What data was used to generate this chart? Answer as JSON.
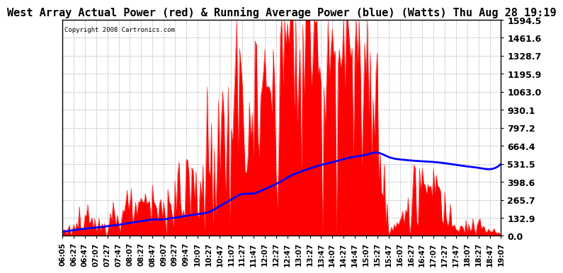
{
  "title": "West Array Actual Power (red) & Running Average Power (blue) (Watts) Thu Aug 28 19:19",
  "copyright": "Copyright 2008 Cartronics.com",
  "yticks": [
    0.0,
    132.9,
    265.7,
    398.6,
    531.5,
    664.4,
    797.2,
    930.1,
    1063.0,
    1195.9,
    1328.7,
    1461.6,
    1594.5
  ],
  "ymax": 1594.5,
  "background_color": "#ffffff",
  "plot_bg_color": "#ffffff",
  "grid_color": "#aaaaaa",
  "fill_color": "#ff0000",
  "avg_color": "#0000ff",
  "title_fontsize": 11,
  "tick_fontsize": 9,
  "xtick_labels": [
    "06:05",
    "06:27",
    "06:47",
    "07:07",
    "07:27",
    "07:47",
    "08:07",
    "08:27",
    "08:47",
    "09:07",
    "09:27",
    "09:47",
    "10:07",
    "10:27",
    "10:47",
    "11:07",
    "11:27",
    "11:47",
    "12:07",
    "12:27",
    "12:47",
    "13:07",
    "13:27",
    "13:47",
    "14:07",
    "14:27",
    "14:47",
    "15:07",
    "15:27",
    "15:47",
    "16:07",
    "16:27",
    "16:47",
    "17:07",
    "17:27",
    "17:47",
    "18:07",
    "18:27",
    "18:47",
    "19:07"
  ],
  "actual_power_base": [
    30,
    55,
    75,
    85,
    110,
    140,
    170,
    200,
    230,
    220,
    260,
    290,
    330,
    400,
    680,
    900,
    1050,
    750,
    1100,
    1280,
    1550,
    1580,
    1530,
    1480,
    1400,
    1480,
    1430,
    1370,
    1320,
    15,
    100,
    260,
    360,
    400,
    200,
    100,
    80,
    60,
    38,
    10
  ],
  "running_avg": [
    30,
    42,
    53,
    61,
    71,
    82,
    95,
    108,
    120,
    122,
    135,
    147,
    160,
    175,
    220,
    268,
    308,
    313,
    346,
    382,
    430,
    468,
    497,
    523,
    543,
    566,
    584,
    599,
    614,
    582,
    564,
    556,
    550,
    545,
    536,
    524,
    512,
    502,
    492,
    531
  ]
}
